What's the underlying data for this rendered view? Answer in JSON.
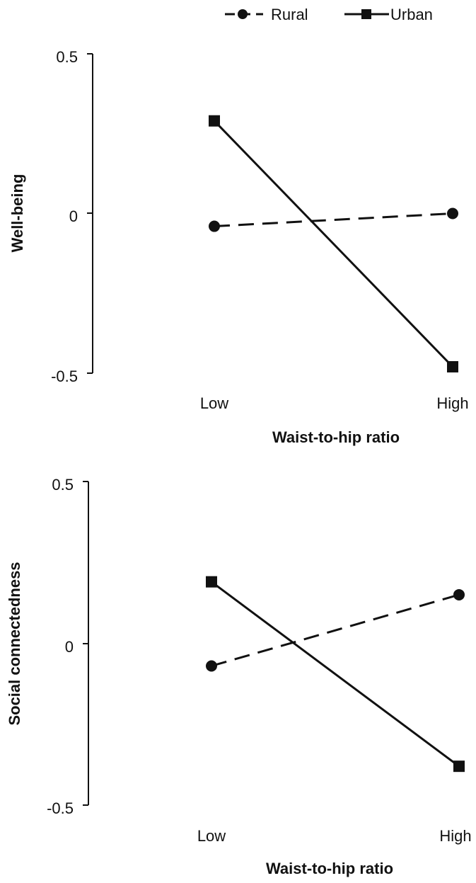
{
  "legend": [
    {
      "name": "Rural",
      "marker": "circle",
      "dash": "dashed"
    },
    {
      "name": "Urban",
      "marker": "square",
      "dash": "solid"
    }
  ],
  "chart_data": [
    {
      "type": "line",
      "categories": [
        "Low",
        "High"
      ],
      "series": [
        {
          "name": "Rural",
          "values": [
            -0.04,
            0.0
          ]
        },
        {
          "name": "Urban",
          "values": [
            0.29,
            -0.48
          ]
        }
      ],
      "xlabel": "Waist-to-hip ratio",
      "ylabel": "Well-being",
      "ylim": [
        -0.5,
        0.5
      ],
      "yticks": [
        "0.5",
        "0",
        "-0.5"
      ],
      "grid": false,
      "legend_position": "top-right"
    },
    {
      "type": "line",
      "categories": [
        "Low",
        "High"
      ],
      "series": [
        {
          "name": "Rural",
          "values": [
            -0.07,
            0.15
          ]
        },
        {
          "name": "Urban",
          "values": [
            0.19,
            -0.38
          ]
        }
      ],
      "xlabel": "Waist-to-hip ratio",
      "ylabel": "Social connectedness",
      "ylim": [
        -0.5,
        0.5
      ],
      "yticks": [
        "0.5",
        "0",
        "-0.5"
      ],
      "grid": false
    }
  ]
}
